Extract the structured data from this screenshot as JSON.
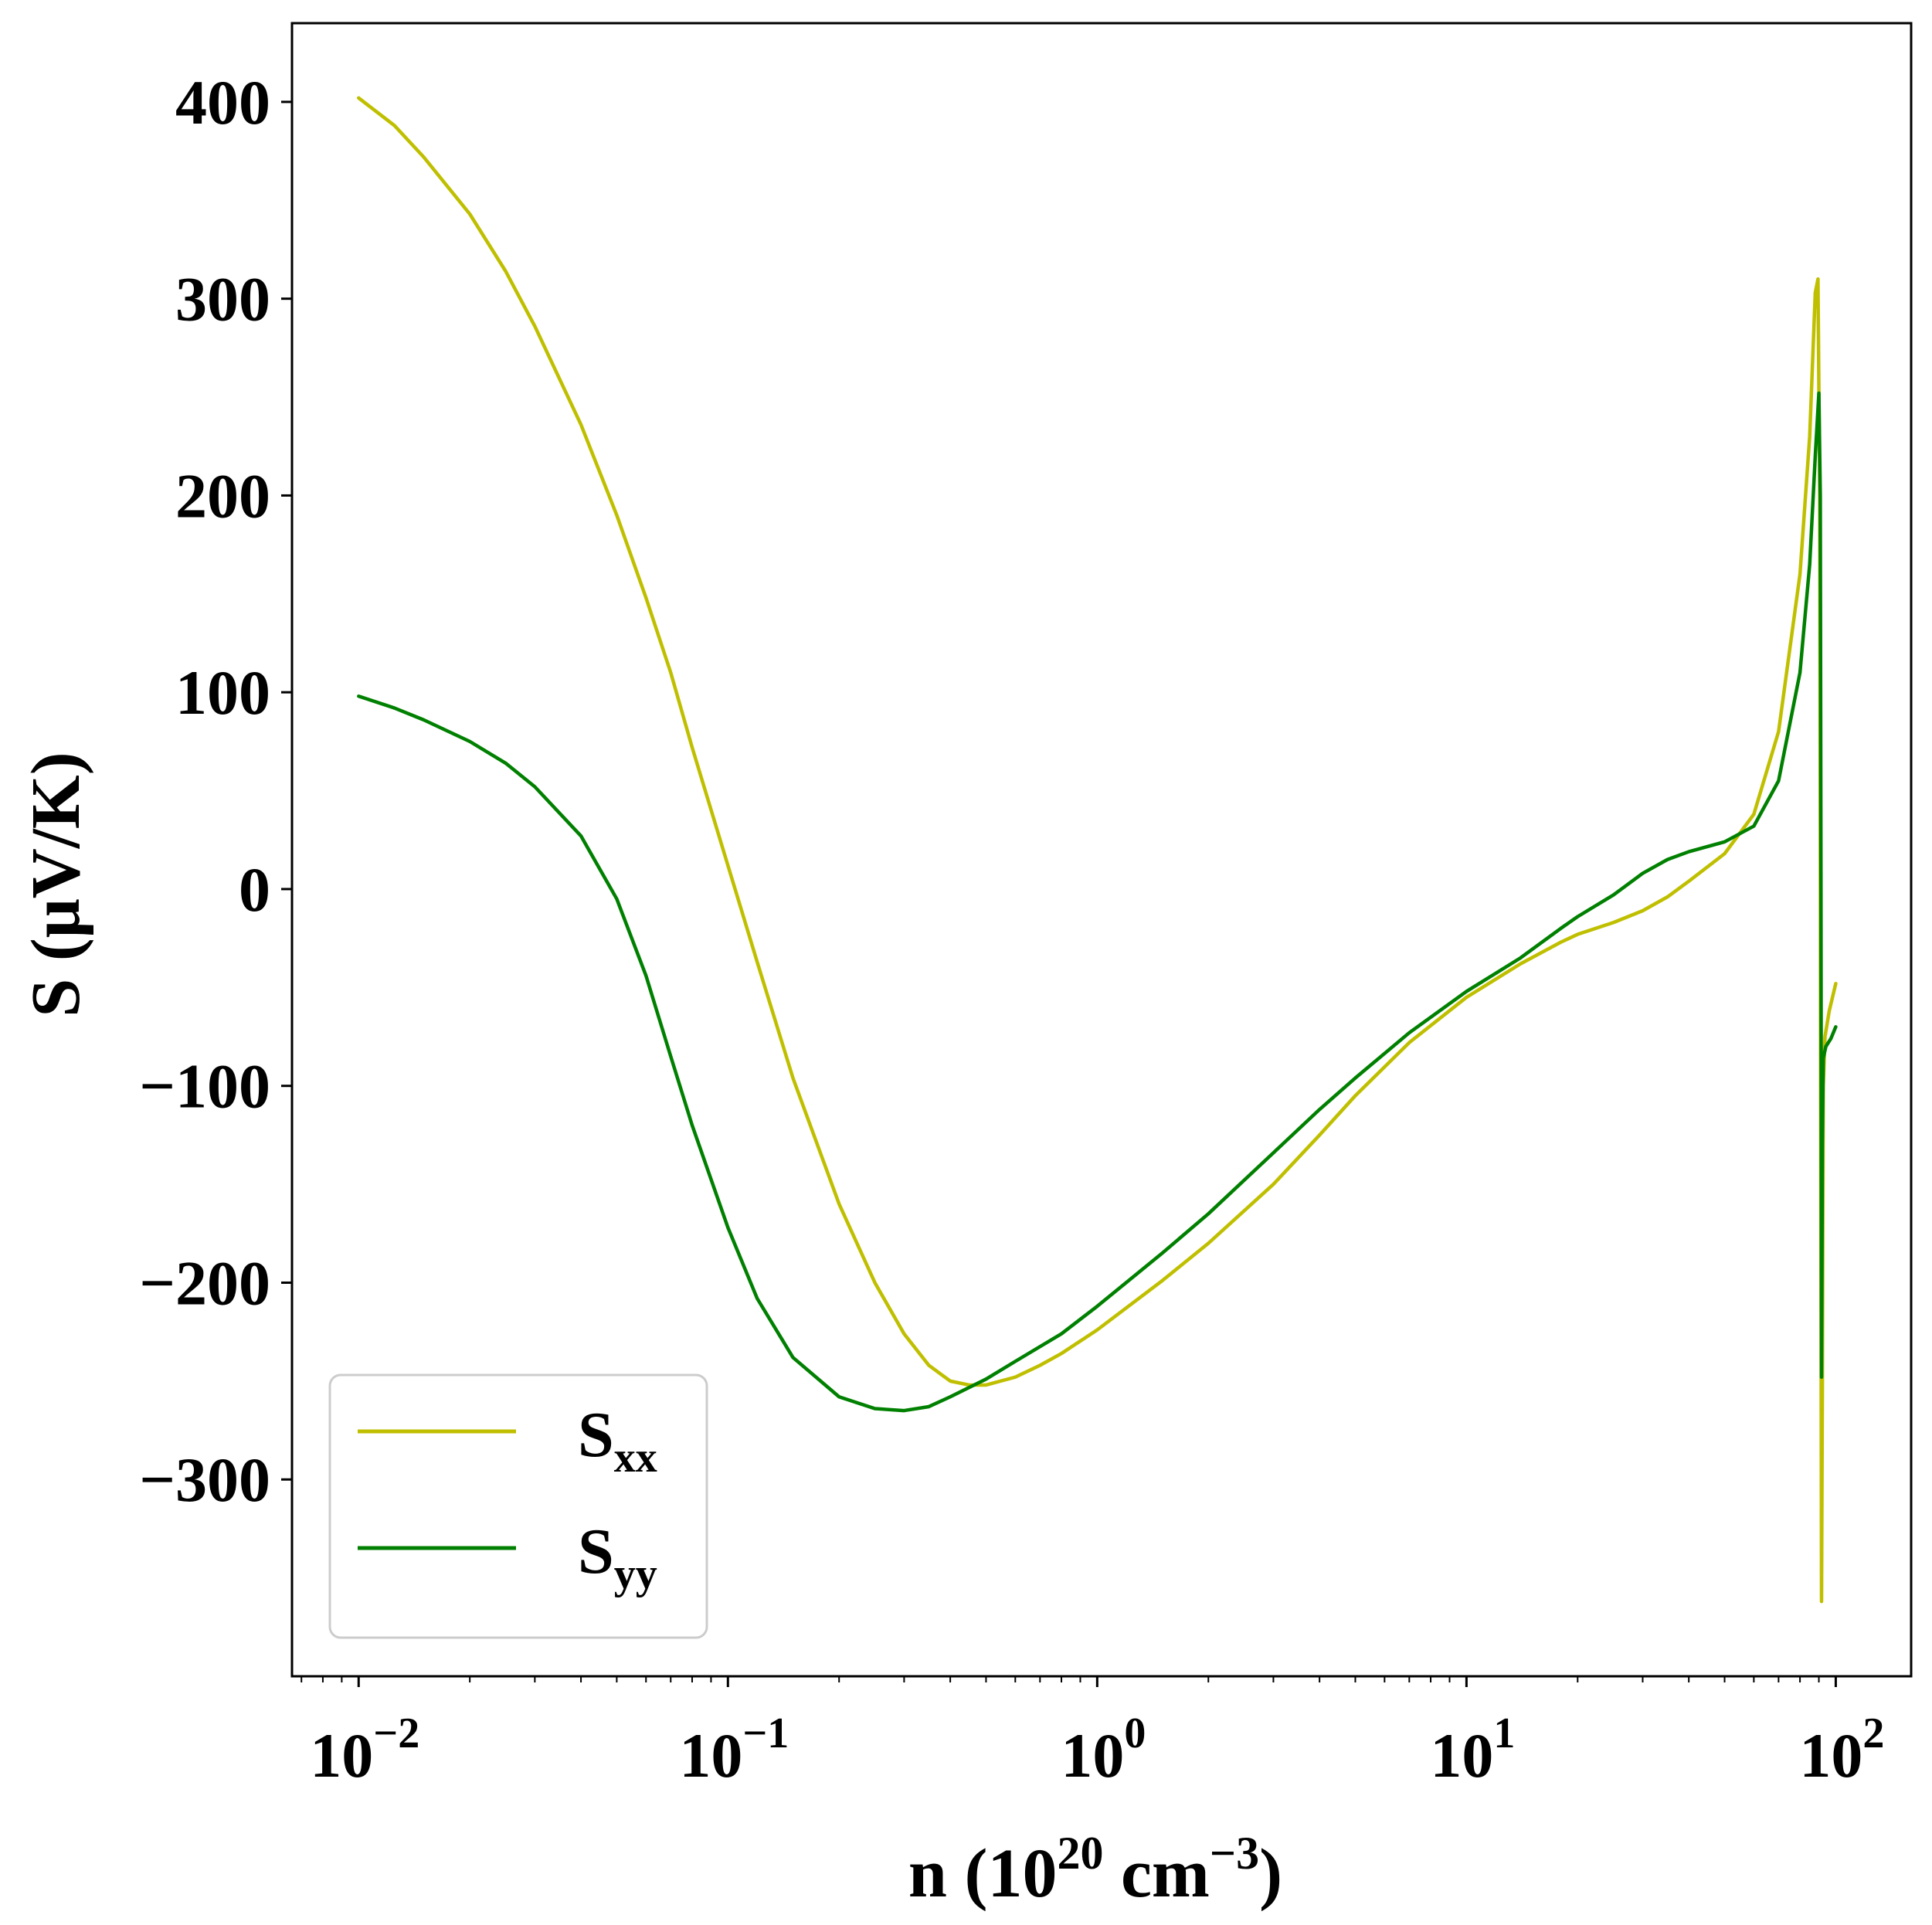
{
  "chart_data": {
    "type": "line",
    "xscale": "log",
    "xlim": [
      0.0066,
      160
    ],
    "ylim": [
      -400,
      440
    ],
    "grid": false,
    "legend_position": "lower-left",
    "xlabel": "n (10^20 cm^-3)",
    "xlabel_parts": {
      "pre": "n (10",
      "sup1": "20",
      "mid": " cm",
      "sup2": "−3",
      "post": ")"
    },
    "ylabel": "S (μV/K)",
    "x_ticks": [
      {
        "value": 0.01,
        "base": "10",
        "exp": "−2"
      },
      {
        "value": 0.1,
        "base": "10",
        "exp": "−1"
      },
      {
        "value": 1,
        "base": "10",
        "exp": "0"
      },
      {
        "value": 10,
        "base": "10",
        "exp": "1"
      },
      {
        "value": 100,
        "base": "10",
        "exp": "2"
      }
    ],
    "y_ticks": [
      {
        "value": 400,
        "label": "400"
      },
      {
        "value": 300,
        "label": "300"
      },
      {
        "value": 200,
        "label": "200"
      },
      {
        "value": 100,
        "label": "100"
      },
      {
        "value": 0,
        "label": "0"
      },
      {
        "value": -100,
        "label": "−100"
      },
      {
        "value": -200,
        "label": "−200"
      },
      {
        "value": -300,
        "label": "−300"
      }
    ],
    "series": [
      {
        "name": "Sxx",
        "label_base": "S",
        "label_sub": "xx",
        "color": "#bfbf00",
        "points": [
          [
            0.01,
            402
          ],
          [
            0.0125,
            388
          ],
          [
            0.015,
            372
          ],
          [
            0.02,
            343
          ],
          [
            0.025,
            314
          ],
          [
            0.03,
            286
          ],
          [
            0.04,
            236
          ],
          [
            0.05,
            190
          ],
          [
            0.06,
            148
          ],
          [
            0.07,
            110
          ],
          [
            0.08,
            72
          ],
          [
            0.1,
            12
          ],
          [
            0.12,
            -37
          ],
          [
            0.15,
            -96
          ],
          [
            0.2,
            -160
          ],
          [
            0.25,
            -200
          ],
          [
            0.3,
            -226
          ],
          [
            0.35,
            -242
          ],
          [
            0.4,
            -250
          ],
          [
            0.45,
            -252
          ],
          [
            0.5,
            -252
          ],
          [
            0.6,
            -248
          ],
          [
            0.7,
            -242
          ],
          [
            0.8,
            -236
          ],
          [
            1.0,
            -224
          ],
          [
            1.5,
            -199
          ],
          [
            2.0,
            -180
          ],
          [
            3.0,
            -150
          ],
          [
            4.0,
            -125
          ],
          [
            5.0,
            -105
          ],
          [
            7.0,
            -78
          ],
          [
            10.0,
            -55
          ],
          [
            14.0,
            -38
          ],
          [
            18.0,
            -27
          ],
          [
            20.0,
            -23
          ],
          [
            25.0,
            -17
          ],
          [
            30.0,
            -11
          ],
          [
            35.0,
            -4
          ],
          [
            40.0,
            4
          ],
          [
            50.0,
            18
          ],
          [
            60.0,
            38
          ],
          [
            70.0,
            80
          ],
          [
            80.0,
            160
          ],
          [
            85.0,
            230
          ],
          [
            88.0,
            303
          ],
          [
            89.5,
            310
          ],
          [
            90.5,
            200
          ],
          [
            91.0,
            -100
          ],
          [
            91.5,
            -362
          ],
          [
            92.0,
            -250
          ],
          [
            92.5,
            -100
          ],
          [
            93.5,
            -75
          ],
          [
            96.0,
            -62
          ],
          [
            100.0,
            -48
          ]
        ]
      },
      {
        "name": "Syy",
        "label_base": "S",
        "label_sub": "yy",
        "color": "#008000",
        "points": [
          [
            0.01,
            98
          ],
          [
            0.0125,
            92
          ],
          [
            0.015,
            86
          ],
          [
            0.02,
            75
          ],
          [
            0.025,
            64
          ],
          [
            0.03,
            52
          ],
          [
            0.04,
            27
          ],
          [
            0.05,
            -5
          ],
          [
            0.06,
            -44
          ],
          [
            0.07,
            -85
          ],
          [
            0.08,
            -120
          ],
          [
            0.1,
            -172
          ],
          [
            0.12,
            -208
          ],
          [
            0.15,
            -238
          ],
          [
            0.2,
            -258
          ],
          [
            0.25,
            -264
          ],
          [
            0.3,
            -265
          ],
          [
            0.35,
            -263
          ],
          [
            0.4,
            -258
          ],
          [
            0.5,
            -249
          ],
          [
            0.6,
            -240
          ],
          [
            0.8,
            -226
          ],
          [
            1.0,
            -212
          ],
          [
            1.5,
            -185
          ],
          [
            2.0,
            -165
          ],
          [
            3.0,
            -134
          ],
          [
            4.0,
            -112
          ],
          [
            5.0,
            -96
          ],
          [
            7.0,
            -73
          ],
          [
            10.0,
            -52
          ],
          [
            14.0,
            -35
          ],
          [
            18.0,
            -20
          ],
          [
            20.0,
            -14
          ],
          [
            25.0,
            -3
          ],
          [
            30.0,
            8
          ],
          [
            35.0,
            15
          ],
          [
            40.0,
            19
          ],
          [
            50.0,
            24
          ],
          [
            60.0,
            32
          ],
          [
            70.0,
            55
          ],
          [
            80.0,
            110
          ],
          [
            85.0,
            165
          ],
          [
            88.0,
            220
          ],
          [
            90.0,
            252
          ],
          [
            90.8,
            200
          ],
          [
            91.2,
            0
          ],
          [
            91.5,
            -248
          ],
          [
            92.0,
            -130
          ],
          [
            92.5,
            -86
          ],
          [
            94.0,
            -80
          ],
          [
            97.0,
            -76
          ],
          [
            100.0,
            -70
          ]
        ]
      }
    ]
  }
}
